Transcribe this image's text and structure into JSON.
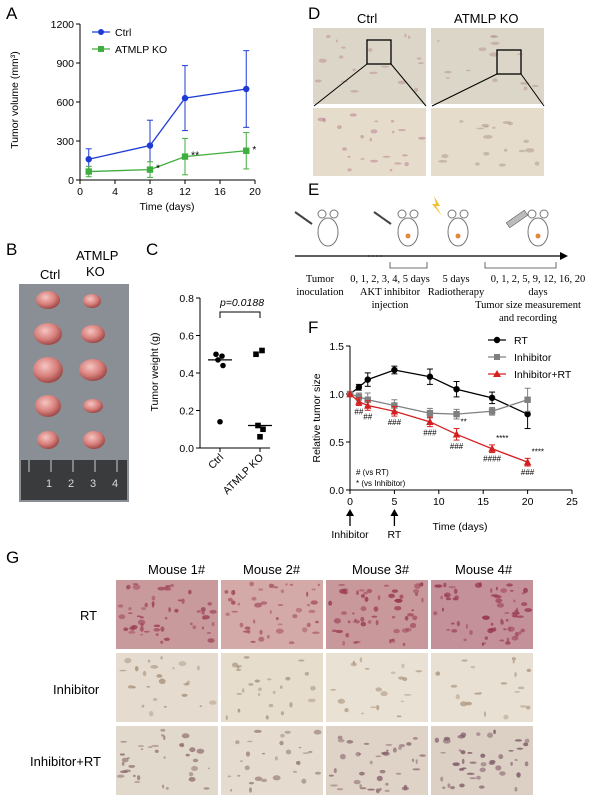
{
  "panels": {
    "A": "A",
    "B": "B",
    "C": "C",
    "D": "D",
    "E": "E",
    "F": "F",
    "G": "G"
  },
  "chart_data": [
    {
      "id": "A",
      "type": "line",
      "xlabel": "Time (days)",
      "ylabel": "Tumor volume (mm³)",
      "xlim": [
        0,
        20
      ],
      "ylim": [
        0,
        1200
      ],
      "xticks": [
        0,
        4,
        8,
        12,
        16,
        20
      ],
      "yticks": [
        0,
        300,
        600,
        900,
        1200
      ],
      "legend_position": "top-left",
      "series": [
        {
          "name": "Ctrl",
          "color": "#1f3bd6",
          "marker": "circle",
          "x": [
            1,
            8,
            12,
            19
          ],
          "y": [
            160,
            265,
            630,
            700
          ],
          "err": [
            80,
            195,
            250,
            295
          ]
        },
        {
          "name": "ATMLP KO",
          "color": "#3fae3f",
          "marker": "square",
          "x": [
            1,
            8,
            12,
            19
          ],
          "y": [
            65,
            80,
            180,
            225
          ],
          "err": [
            40,
            60,
            140,
            140
          ],
          "annotations": [
            "",
            "*",
            "**",
            "*"
          ]
        }
      ]
    },
    {
      "id": "C",
      "type": "scatter",
      "ylabel": "Tumor weight (g)",
      "categories": [
        "Ctrl",
        "ATMLP KO"
      ],
      "ylim": [
        0,
        0.8
      ],
      "yticks": [
        0.0,
        0.2,
        0.4,
        0.6,
        0.8
      ],
      "pvalue_text": "p=0.0188",
      "series": [
        {
          "name": "Ctrl",
          "marker": "circle",
          "values": [
            0.5,
            0.49,
            0.47,
            0.44,
            0.14
          ],
          "median": 0.47
        },
        {
          "name": "ATMLP KO",
          "marker": "square",
          "values": [
            0.5,
            0.52,
            0.12,
            0.1,
            0.06
          ],
          "median": 0.12
        }
      ]
    },
    {
      "id": "F",
      "type": "line",
      "xlabel": "Time (days)",
      "ylabel": "Relative tumor size",
      "xlim": [
        0,
        25
      ],
      "ylim": [
        0,
        1.5
      ],
      "xticks": [
        0,
        5,
        10,
        15,
        20,
        25
      ],
      "yticks": [
        0.0,
        0.5,
        1.0,
        1.5
      ],
      "legend_position": "top-right",
      "series": [
        {
          "name": "RT",
          "color": "#000000",
          "marker": "circle",
          "x": [
            0,
            1,
            2,
            5,
            9,
            12,
            16,
            20
          ],
          "y": [
            1.0,
            1.07,
            1.15,
            1.25,
            1.18,
            1.05,
            0.96,
            0.79
          ],
          "err": [
            0,
            0.03,
            0.07,
            0.04,
            0.08,
            0.08,
            0.06,
            0.15
          ]
        },
        {
          "name": "Inhibitor",
          "color": "#808080",
          "marker": "square",
          "x": [
            0,
            1,
            2,
            5,
            9,
            12,
            16,
            20
          ],
          "y": [
            1.0,
            0.97,
            0.94,
            0.88,
            0.8,
            0.79,
            0.82,
            0.94
          ],
          "err": [
            0,
            0.04,
            0.07,
            0.06,
            0.05,
            0.05,
            0.04,
            0.12
          ]
        },
        {
          "name": "Inhibitor+RT",
          "color": "#d42020",
          "marker": "triangle",
          "x": [
            0,
            1,
            2,
            5,
            9,
            12,
            16,
            20
          ],
          "y": [
            1.0,
            0.92,
            0.88,
            0.82,
            0.71,
            0.58,
            0.43,
            0.29
          ],
          "err": [
            0,
            0.04,
            0.05,
            0.05,
            0.05,
            0.06,
            0.04,
            0.04
          ]
        }
      ],
      "annotations": [
        {
          "x": 1,
          "text": "##"
        },
        {
          "x": 2,
          "text": "##"
        },
        {
          "x": 5,
          "text": "###"
        },
        {
          "x": 9,
          "text": "###"
        },
        {
          "x": 12,
          "text": "**",
          "row": "star"
        },
        {
          "x": 12,
          "text": "###"
        },
        {
          "x": 16,
          "text": "****",
          "row": "star"
        },
        {
          "x": 16,
          "text": "####"
        },
        {
          "x": 20,
          "text": "****",
          "row": "star"
        },
        {
          "x": 20,
          "text": "###"
        }
      ],
      "key_lines": [
        "# (vs RT)",
        "* (vs Inhibitor)"
      ],
      "arrows": [
        {
          "x": 0,
          "label": "Inhibitor"
        },
        {
          "x": 5,
          "label": "RT"
        }
      ]
    }
  ],
  "panel_b": {
    "col1": "Ctrl",
    "col2": "ATMLP",
    "col2b": "KO",
    "ruler": [
      "1",
      "2",
      "3",
      "4"
    ]
  },
  "panel_d": {
    "col1": "Ctrl",
    "col2": "ATMLP KO"
  },
  "panel_e": {
    "labels": [
      "Tumor",
      "inoculation",
      "0, 1, 2, 3, 4, 5 days",
      "AKT inhibitor",
      "injection",
      "5 days",
      "Radiotherapy",
      "0, 1, 2, 5, 9, 12, 16, 20",
      "days",
      "Tumor size measurement",
      "and recording"
    ]
  },
  "panel_g": {
    "columns": [
      "Mouse 1#",
      "Mouse 2#",
      "Mouse 3#",
      "Mouse 4#"
    ],
    "rows": [
      "RT",
      "Inhibitor",
      "Inhibitor+RT"
    ]
  }
}
